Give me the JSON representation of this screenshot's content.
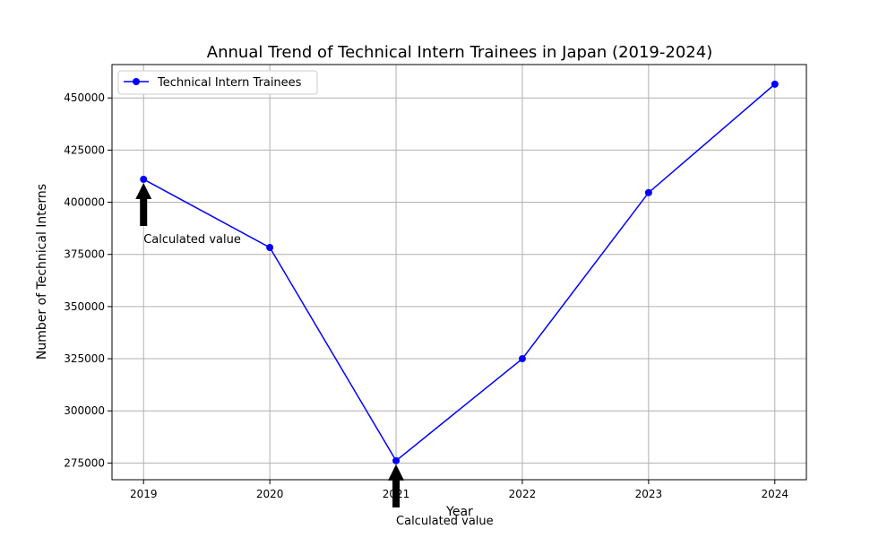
{
  "chart_data": {
    "type": "line",
    "title": "Annual Trend of Technical Intern Trainees in Japan (2019-2024)",
    "xlabel": "Year",
    "ylabel": "Number of Technical Interns",
    "x": [
      2019,
      2020,
      2021,
      2022,
      2023,
      2024
    ],
    "xticks": [
      "2019",
      "2020",
      "2021",
      "2022",
      "2023",
      "2024"
    ],
    "yticks": [
      "275000",
      "300000",
      "325000",
      "350000",
      "375000",
      "400000",
      "425000",
      "450000"
    ],
    "ylim": [
      267000,
      466000
    ],
    "xlim": [
      2018.75,
      2024.25
    ],
    "grid": true,
    "legend_position": "top-left",
    "series": [
      {
        "name": "Technical Intern Trainees",
        "color": "#0000ff",
        "marker": "circle",
        "values": [
          411000,
          378300,
          276100,
          325000,
          404600,
          456600
        ]
      }
    ],
    "annotations": [
      {
        "text": "Calculated value",
        "x": 2019,
        "y": 411000
      },
      {
        "text": "Calculated value",
        "x": 2021,
        "y": 276100
      }
    ]
  }
}
